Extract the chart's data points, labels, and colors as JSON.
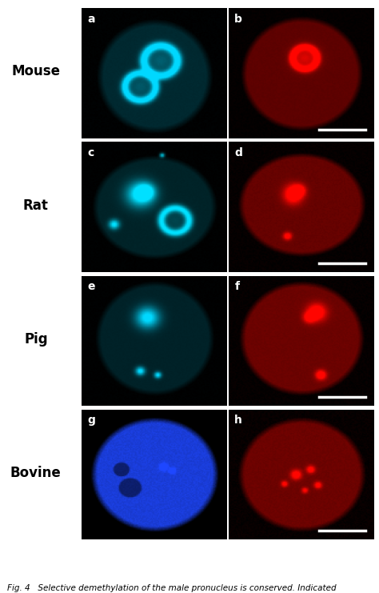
{
  "rows": [
    "Mouse",
    "Rat",
    "Pig",
    "Bovine"
  ],
  "row_label_fontsize": 12,
  "panel_labels": [
    "a",
    "b",
    "c",
    "d",
    "e",
    "f",
    "g",
    "h"
  ],
  "panel_label_fontsize": 10,
  "fig_width": 4.74,
  "fig_height": 7.41,
  "bg_color": "#ffffff",
  "caption": "Fig. 4   Selective demethylation of the male pronucleus is conserved. Indicated",
  "caption_fontsize": 7.5,
  "scale_bar_color": "#ffffff",
  "panel_label_color": "#ffffff",
  "row_label_color": "#000000"
}
